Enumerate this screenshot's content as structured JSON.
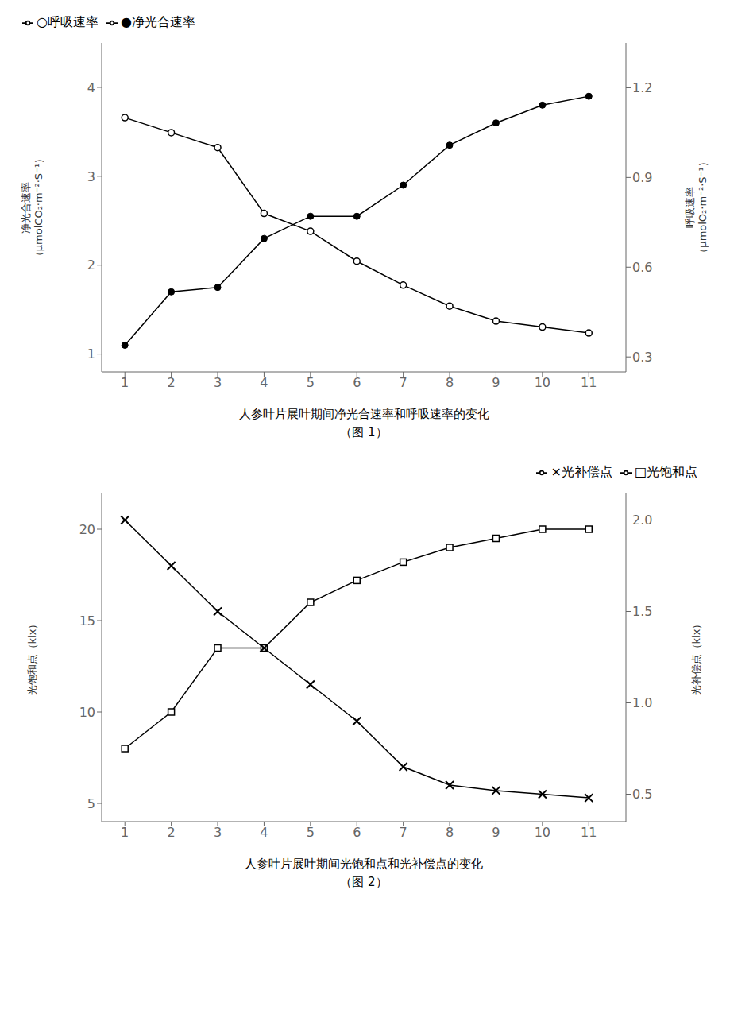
{
  "chart_data": [
    {
      "type": "line",
      "title": "人参叶片展叶期间净光合速率和呼吸速率的变化",
      "subtitle": "（图 1）",
      "x": [
        1,
        2,
        3,
        4,
        5,
        6,
        7,
        8,
        9,
        10,
        11
      ],
      "xlim": [
        0.5,
        11.8
      ],
      "xticks": [
        1,
        2,
        3,
        4,
        5,
        6,
        7,
        8,
        9,
        10,
        11
      ],
      "ylim": [
        0.8,
        4.5
      ],
      "yticks": [
        1,
        2,
        3,
        4
      ],
      "y2lim": [
        0.25,
        1.35
      ],
      "y2ticks": [
        0.3,
        0.6,
        0.9,
        1.2
      ],
      "ylabel": "净光合速率\n（μmolCO₂·m⁻²·S⁻¹）",
      "y2label": "呼吸速率\n（μmolO₂·m⁻²·S⁻¹）",
      "legend": "upper left",
      "grid": false,
      "series": [
        {
          "name": "●净光合速率",
          "color": "#000000",
          "marker": "circle",
          "axis": "y",
          "values": [
            1.1,
            1.7,
            1.75,
            2.3,
            2.55,
            2.55,
            2.9,
            3.35,
            3.6,
            3.8,
            3.9
          ]
        },
        {
          "name": "○呼吸速率",
          "color": "#000000",
          "marker": "circle_open",
          "axis": "y2",
          "values": [
            1.1,
            1.05,
            1.0,
            0.78,
            0.72,
            0.62,
            0.54,
            0.47,
            0.42,
            0.4,
            0.38
          ]
        }
      ]
    },
    {
      "type": "line",
      "title": "人参叶片展叶期间光饱和点和光补偿点的变化",
      "subtitle": "（图 2）",
      "x": [
        1,
        2,
        3,
        4,
        5,
        6,
        7,
        8,
        9,
        10,
        11
      ],
      "xlim": [
        0.5,
        11.8
      ],
      "xticks": [
        1,
        2,
        3,
        4,
        5,
        6,
        7,
        8,
        9,
        10,
        11
      ],
      "ylim": [
        4,
        22
      ],
      "yticks": [
        5,
        10,
        15,
        20
      ],
      "y2lim": [
        0.35,
        2.15
      ],
      "y2ticks": [
        0.5,
        {
          "value": 1.0,
          "label": "1.0"
        },
        1.5,
        {
          "value": 2.0,
          "label": "2.0"
        }
      ],
      "ylabel": "光饱和点（klx）",
      "y2label": "光补偿点（klx）",
      "legend": "upper right",
      "grid": false,
      "series": [
        {
          "name": "□光饱和点",
          "color": "#000000",
          "marker": "square_open",
          "axis": "y",
          "values": [
            8.0,
            10.0,
            13.5,
            13.5,
            16.0,
            17.2,
            18.2,
            19.0,
            19.5,
            20.0,
            20.0
          ]
        },
        {
          "name": "×光补偿点",
          "color": "#000000",
          "marker": "x",
          "axis": "y2",
          "values": [
            2.0,
            1.75,
            1.5,
            1.3,
            1.1,
            0.9,
            0.65,
            0.55,
            0.52,
            0.5,
            0.48
          ]
        }
      ]
    }
  ]
}
